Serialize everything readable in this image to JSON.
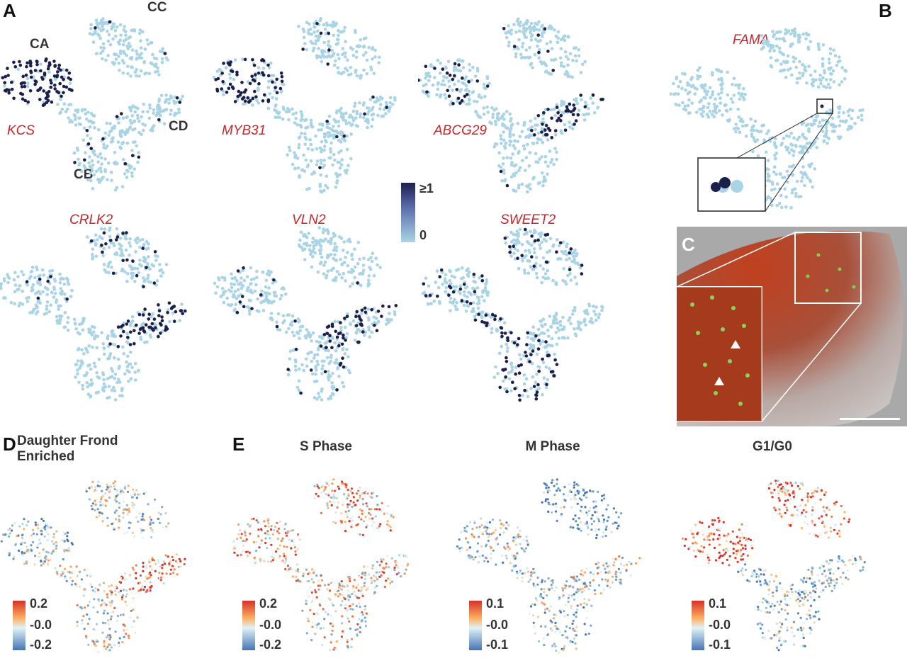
{
  "chart_data": {
    "type": "scatter",
    "panel_labels": [
      "A",
      "B",
      "C",
      "D",
      "E"
    ],
    "clusters": [
      "CA",
      "CB",
      "CC",
      "CD"
    ],
    "panelA": {
      "colorbar": {
        "max_label": "≥1",
        "min_label": "0",
        "low_color": "#a9d4e6",
        "high_color": "#1b1f4b"
      },
      "genes": [
        {
          "name": "KCS",
          "enriched": {
            "CA": 0.8
          }
        },
        {
          "name": "MYB31",
          "enriched": {
            "CA": 0.6,
            "CC": 0.1
          }
        },
        {
          "name": "ABCG29",
          "enriched": {
            "CD": 0.45,
            "CA": 0.2,
            "CC": 0.05
          }
        },
        {
          "name": "CRLK2",
          "enriched": {
            "CD": 0.5,
            "CC": 0.1,
            "CA": 0.05
          }
        },
        {
          "name": "VLN2",
          "enriched": {
            "CD": 0.45,
            "CB": 0.1,
            "CA": 0.05
          }
        },
        {
          "name": "SWEET2",
          "enriched": {
            "CB": 0.45,
            "CC": 0.15,
            "CA": 0.1
          }
        }
      ]
    },
    "panelB": {
      "gene": "FAMA",
      "enriched": {
        "CD": 0.01
      }
    },
    "panelD": {
      "title": "Daughter Frond Enriched",
      "colorbar": {
        "labels": [
          "0.2",
          "-0.0",
          "-0.2"
        ]
      },
      "bias": {
        "CA": -0.3,
        "CB": 0.0,
        "CC": -0.2,
        "CD": 0.6
      }
    },
    "panelE": [
      {
        "title": "S Phase",
        "colorbar": {
          "labels": [
            "0.2",
            "-0.0",
            "-0.2"
          ]
        },
        "bias": {
          "CA": 0.3,
          "CB": 0.1,
          "CC": 0.3,
          "CD": 0.2
        }
      },
      {
        "title": "M Phase",
        "colorbar": {
          "labels": [
            "0.1",
            "-0.0",
            "-0.1"
          ]
        },
        "bias": {
          "CA": -0.2,
          "CB": -0.3,
          "CC": -0.6,
          "CD": -0.1
        }
      },
      {
        "title": "G1/G0",
        "colorbar": {
          "labels": [
            "0.1",
            "-0.0",
            "-0.1"
          ]
        },
        "bias": {
          "CA": 0.7,
          "CB": -0.4,
          "CC": 0.5,
          "CD": -0.3
        }
      }
    ]
  }
}
